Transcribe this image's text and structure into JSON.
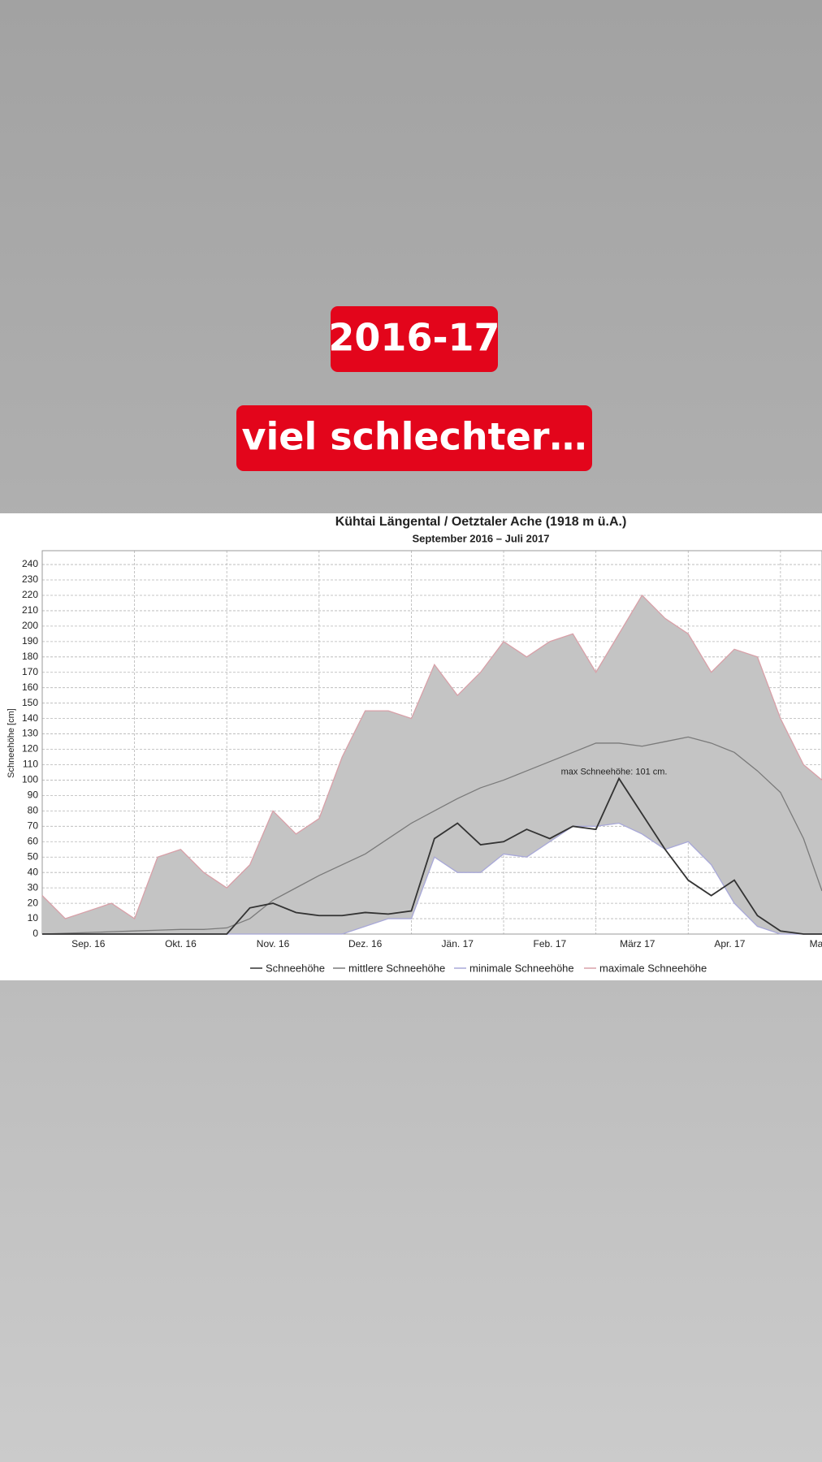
{
  "stickers": [
    "2016-17",
    "viel schlechter…"
  ],
  "chart_data": {
    "type": "line",
    "title": "Kühtai Längental / Oetztaler Ache (1918 m ü.A.)",
    "subtitle": "September 2016 – Juli 2017",
    "y_label": "Schneehöhe [cm]",
    "annotation": "max Schneehöhe: 101 cm.",
    "x": [
      0,
      0.25,
      0.5,
      0.75,
      1,
      1.25,
      1.5,
      1.75,
      2,
      2.25,
      2.5,
      2.75,
      3,
      3.25,
      3.5,
      3.75,
      4,
      4.25,
      4.5,
      4.75,
      5,
      5.25,
      5.5,
      5.75,
      6,
      6.25,
      6.5,
      6.75,
      7,
      7.25,
      7.5,
      7.75,
      8,
      8.25,
      8.45
    ],
    "xlim": [
      0,
      8.45
    ],
    "xticks": [
      {
        "value": 0.5,
        "label": "Sep. 16"
      },
      {
        "value": 1.5,
        "label": "Okt. 16"
      },
      {
        "value": 2.5,
        "label": "Nov. 16"
      },
      {
        "value": 3.5,
        "label": "Dez. 16"
      },
      {
        "value": 4.5,
        "label": "Jän. 17"
      },
      {
        "value": 5.5,
        "label": "Feb. 17"
      },
      {
        "value": 6.45,
        "label": "März 17"
      },
      {
        "value": 7.45,
        "label": "Apr. 17"
      },
      {
        "value": 8.4,
        "label": "Mai"
      }
    ],
    "xgrid": [
      1,
      2,
      3,
      4,
      5,
      6,
      7,
      8
    ],
    "ylim": [
      0,
      249
    ],
    "yticks": [
      0,
      10,
      20,
      30,
      40,
      50,
      60,
      70,
      80,
      90,
      100,
      110,
      120,
      130,
      140,
      150,
      160,
      170,
      180,
      190,
      200,
      210,
      220,
      230,
      240
    ],
    "grid": true,
    "band_color": "#c4c4c4",
    "series": [
      {
        "name": "Schneehöhe",
        "color": "#333333",
        "values": [
          0,
          0,
          0,
          0,
          0,
          0,
          0,
          0,
          0,
          17,
          20,
          14,
          12,
          12,
          14,
          13,
          15,
          62,
          72,
          58,
          60,
          68,
          62,
          70,
          68,
          101,
          78,
          55,
          35,
          25,
          35,
          12,
          2,
          0,
          0
        ]
      },
      {
        "name": "mittlere Schneehöhe",
        "color": "#7a7a7a",
        "values": [
          0,
          0.5,
          1,
          1.5,
          2,
          2.5,
          3,
          3,
          4,
          10,
          22,
          30,
          38,
          45,
          52,
          62,
          72,
          80,
          88,
          95,
          100,
          106,
          112,
          118,
          124,
          124,
          122,
          125,
          128,
          124,
          118,
          106,
          92,
          62,
          28
        ]
      },
      {
        "name": "minimale Schneehöhe",
        "color": "#a8a8d8",
        "values": [
          0,
          0,
          0,
          0,
          0,
          0,
          0,
          0,
          0,
          0,
          0,
          0,
          0,
          0,
          5,
          10,
          10,
          50,
          40,
          40,
          52,
          50,
          60,
          70,
          70,
          72,
          65,
          55,
          60,
          45,
          20,
          5,
          0,
          0,
          0
        ]
      },
      {
        "name": "maximale Schneehöhe",
        "color": "#d8a0a8",
        "values": [
          25,
          10,
          15,
          20,
          10,
          50,
          55,
          40,
          30,
          45,
          80,
          65,
          75,
          115,
          145,
          145,
          140,
          175,
          155,
          170,
          190,
          180,
          190,
          195,
          170,
          195,
          220,
          205,
          195,
          170,
          185,
          180,
          140,
          110,
          100
        ]
      }
    ]
  }
}
